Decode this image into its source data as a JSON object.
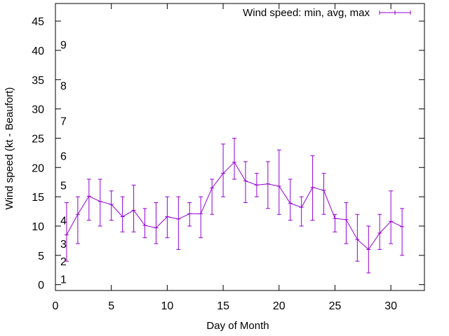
{
  "chart_data": {
    "type": "line",
    "xlabel": "Day of Month",
    "ylabel": "Wind speed (kt - Beaufort)",
    "xlim": [
      0,
      33
    ],
    "ylim": [
      -1,
      48
    ],
    "xticks": [
      0,
      5,
      10,
      15,
      20,
      25,
      30
    ],
    "yticks": [
      0,
      5,
      10,
      15,
      20,
      25,
      30,
      35,
      40,
      45
    ],
    "grid": false,
    "legend_position": "top-right",
    "colors": {
      "series": "#9400d3",
      "axis": "#000000"
    },
    "beaufort_labels": [
      {
        "label": "1",
        "y": 1
      },
      {
        "label": "2",
        "y": 4
      },
      {
        "label": "3",
        "y": 7
      },
      {
        "label": "4",
        "y": 11
      },
      {
        "label": "5",
        "y": 17
      },
      {
        "label": "6",
        "y": 22
      },
      {
        "label": "7",
        "y": 28
      },
      {
        "label": "8",
        "y": 34
      },
      {
        "label": "9",
        "y": 41
      }
    ],
    "series": [
      {
        "name": "Wind speed: min, avg, max",
        "x": [
          1,
          2,
          3,
          4,
          5,
          6,
          7,
          8,
          9,
          10,
          11,
          12,
          13,
          14,
          15,
          16,
          17,
          18,
          19,
          20,
          21,
          22,
          23,
          24,
          25,
          26,
          27,
          28,
          29,
          30,
          31
        ],
        "avg": [
          8.5,
          12,
          15.1,
          14.2,
          13.7,
          11.6,
          12.7,
          10.1,
          9.7,
          11.6,
          11.2,
          12.1,
          12.1,
          16.5,
          19,
          20.9,
          17.7,
          17,
          17.2,
          16.8,
          13.9,
          13.2,
          16.6,
          16.1,
          11.3,
          11.1,
          7.7,
          6,
          8.8,
          10.8,
          9.9
        ],
        "min": [
          4,
          7,
          11,
          10,
          11,
          9,
          9,
          8,
          7,
          8,
          6,
          10,
          8,
          12,
          15,
          18,
          14,
          15,
          13,
          12,
          11,
          10,
          11,
          12,
          9,
          7,
          4,
          2,
          6,
          7,
          5
        ],
        "max": [
          14,
          15,
          18,
          18,
          16,
          15,
          17,
          13,
          14,
          15,
          15,
          14,
          15,
          18,
          24,
          25,
          21,
          19,
          21,
          23,
          18,
          15,
          22,
          19,
          12,
          14,
          12,
          10,
          12,
          16,
          13
        ]
      }
    ]
  }
}
